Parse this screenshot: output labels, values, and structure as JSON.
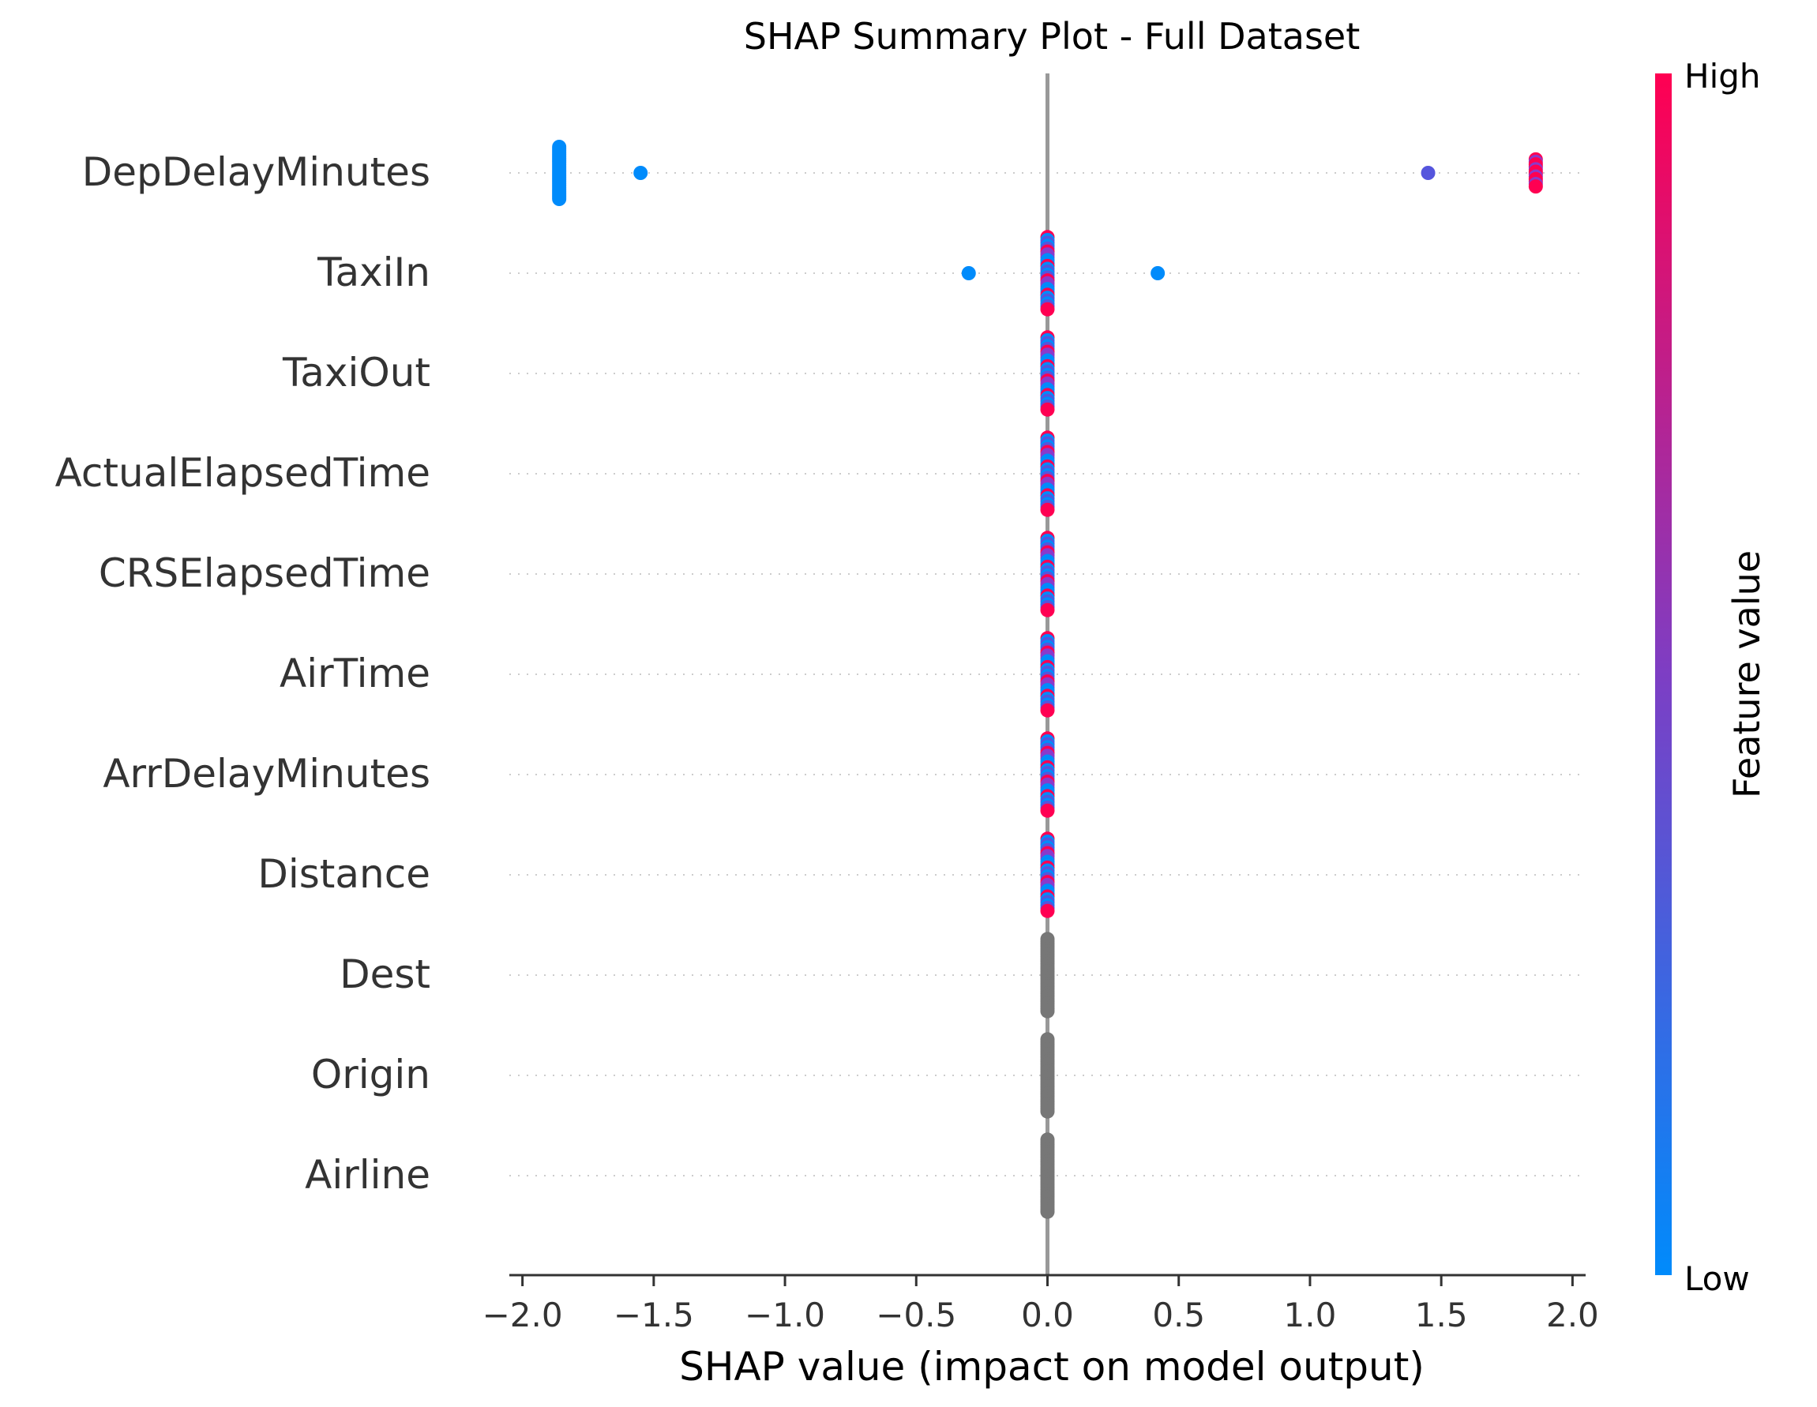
{
  "chart_data": {
    "type": "scatter",
    "subtype": "shap-beeswarm",
    "title": "SHAP Summary Plot - Full Dataset",
    "xlabel": "SHAP value (impact on model output)",
    "ylabel": "",
    "xlim": [
      -2.05,
      2.05
    ],
    "xticks": [
      -2.0,
      -1.5,
      -1.0,
      -0.5,
      0.0,
      0.5,
      1.0,
      1.5,
      2.0
    ],
    "xtick_labels": [
      "−2.0",
      "−1.5",
      "−1.0",
      "−0.5",
      "0.0",
      "0.5",
      "1.0",
      "1.5",
      "2.0"
    ],
    "grid": false,
    "row_gridlines": "dotted",
    "zero_line": true,
    "features": [
      {
        "name": "DepDelayMinutes",
        "points": [
          {
            "x": -1.86,
            "spread": 0.52,
            "color": "low",
            "count": 28
          },
          {
            "x": -1.55,
            "spread": 0,
            "color": "low",
            "count": 1
          },
          {
            "x": 1.45,
            "spread": 0,
            "color": "mid_low",
            "count": 1
          },
          {
            "x": 1.86,
            "spread": 0.27,
            "color": "mixed_high",
            "count": 12
          }
        ]
      },
      {
        "name": "TaxiIn",
        "points": [
          {
            "x": -0.3,
            "spread": 0,
            "color": "low",
            "count": 1
          },
          {
            "x": 0.0,
            "spread": 0.72,
            "color": "mixed",
            "count": 26
          },
          {
            "x": 0.42,
            "spread": 0,
            "color": "low",
            "count": 1
          }
        ]
      },
      {
        "name": "TaxiOut",
        "points": [
          {
            "x": 0.0,
            "spread": 0.72,
            "color": "mixed",
            "count": 26
          }
        ]
      },
      {
        "name": "ActualElapsedTime",
        "points": [
          {
            "x": 0.0,
            "spread": 0.72,
            "color": "mixed",
            "count": 26
          }
        ]
      },
      {
        "name": "CRSElapsedTime",
        "points": [
          {
            "x": 0.0,
            "spread": 0.72,
            "color": "mixed",
            "count": 26
          }
        ]
      },
      {
        "name": "AirTime",
        "points": [
          {
            "x": 0.0,
            "spread": 0.72,
            "color": "mixed",
            "count": 26
          }
        ]
      },
      {
        "name": "ArrDelayMinutes",
        "points": [
          {
            "x": 0.0,
            "spread": 0.72,
            "color": "mixed",
            "count": 26
          }
        ]
      },
      {
        "name": "Distance",
        "points": [
          {
            "x": 0.0,
            "spread": 0.72,
            "color": "mixed",
            "count": 26
          }
        ]
      },
      {
        "name": "Dest",
        "points": [
          {
            "x": 0.0,
            "spread": 0.72,
            "color": "none",
            "count": 30
          }
        ]
      },
      {
        "name": "Origin",
        "points": [
          {
            "x": 0.0,
            "spread": 0.72,
            "color": "none",
            "count": 30
          }
        ]
      },
      {
        "name": "Airline",
        "points": [
          {
            "x": 0.0,
            "spread": 0.72,
            "color": "none",
            "count": 30
          }
        ]
      }
    ],
    "colorbar": {
      "label": "Feature value",
      "high_label": "High",
      "low_label": "Low",
      "low_color": "#008bfb",
      "mid_color": "#7d3ec4",
      "high_color": "#ff0052",
      "placement": "right"
    },
    "colors": {
      "low": "#008bfb",
      "mid_low": "#5555dd",
      "mid": "#8a3acb",
      "high": "#ff0052",
      "none": "#777777",
      "zero_line": "#999999",
      "row_grid": "#cccccc",
      "text": "#333333"
    }
  }
}
